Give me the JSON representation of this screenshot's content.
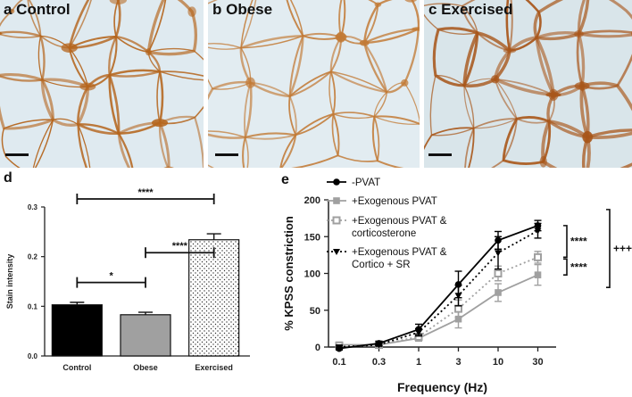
{
  "micrographs": [
    {
      "label": "a Control",
      "bg": "#dfeaf0",
      "stain": "#b5651d",
      "density": 1.0
    },
    {
      "label": "b Obese",
      "bg": "#e2ecf1",
      "stain": "#c27a35",
      "density": 0.65
    },
    {
      "label": "c Exercised",
      "bg": "#d9e5ea",
      "stain": "#a8561a",
      "density": 1.35
    }
  ],
  "chart_data": [
    {
      "panel": "d",
      "type": "bar",
      "categories": [
        "Control",
        "Obese",
        "Exercised"
      ],
      "values": [
        0.103,
        0.083,
        0.234
      ],
      "errors": [
        0.005,
        0.005,
        0.012
      ],
      "fills": [
        "#000000",
        "#a0a0a0",
        "dotted"
      ],
      "ylabel": "Stain intensity",
      "ylim": [
        0,
        0.3
      ],
      "yticks": [
        "0.0",
        "0.1",
        "0.2",
        "0.3"
      ],
      "significance": [
        {
          "from": 0,
          "to": 1,
          "label": "*"
        },
        {
          "from": 1,
          "to": 2,
          "label": "****"
        },
        {
          "from": 0,
          "to": 2,
          "label": "****"
        }
      ]
    },
    {
      "panel": "e",
      "type": "line",
      "x": [
        "0.1",
        "0.3",
        "1",
        "3",
        "10",
        "30"
      ],
      "xlabel": "Frequency (Hz)",
      "ylabel": "% KPSS constriction",
      "ylim": [
        0,
        200
      ],
      "yticks": [
        "0",
        "50",
        "100",
        "150",
        "200"
      ],
      "series": [
        {
          "name": "-PVAT",
          "values": [
            -2,
            5,
            24,
            85,
            145,
            165
          ],
          "errors": [
            2,
            3,
            7,
            18,
            12,
            7
          ],
          "color": "#000000",
          "dash": "",
          "marker": "circle"
        },
        {
          "name": "+Exogenous PVAT",
          "values": [
            3,
            3,
            12,
            38,
            74,
            98
          ],
          "errors": [
            2,
            2,
            4,
            12,
            12,
            14
          ],
          "color": "#a0a0a0",
          "dash": "",
          "marker": "square"
        },
        {
          "name": "+Exogenous PVAT & corticosterone",
          "values": [
            2,
            3,
            14,
            52,
            100,
            122
          ],
          "errors": [
            2,
            2,
            4,
            12,
            10,
            8
          ],
          "color": "#a0a0a0",
          "dash": "2,3",
          "marker": "open-square"
        },
        {
          "name": "+Exogenous PVAT & Cortico + SR",
          "values": [
            0,
            3,
            20,
            70,
            128,
            158
          ],
          "errors": [
            2,
            2,
            5,
            14,
            22,
            10
          ],
          "color": "#000000",
          "dash": "2,3",
          "marker": "triangle-down"
        }
      ],
      "legend": [
        {
          "lines": [
            "-PVAT"
          ]
        },
        {
          "lines": [
            "+Exogenous PVAT"
          ]
        },
        {
          "lines": [
            "+Exogenous PVAT &",
            "corticosterone"
          ]
        },
        {
          "lines": [
            "+Exogenous PVAT &",
            "Cortico + SR"
          ]
        }
      ],
      "significance": [
        {
          "label": "****",
          "between": [
            0,
            2
          ]
        },
        {
          "label": "****",
          "between": [
            2,
            1
          ]
        },
        {
          "label": "++++",
          "between": [
            0,
            1
          ]
        }
      ]
    }
  ],
  "panel_labels": {
    "d": "d",
    "e": "e"
  }
}
